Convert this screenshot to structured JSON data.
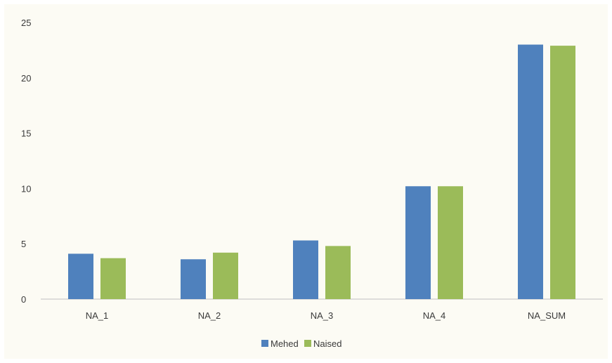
{
  "chart_data": {
    "type": "bar",
    "title": "",
    "xlabel": "",
    "ylabel": "",
    "categories": [
      "NA_1",
      "NA_2",
      "NA_3",
      "NA_4",
      "NA_SUM"
    ],
    "series": [
      {
        "name": "Mehed",
        "color": "#4f81bd",
        "values": [
          4.1,
          3.6,
          5.3,
          10.2,
          23.0
        ]
      },
      {
        "name": "Naised",
        "color": "#9bbb59",
        "values": [
          3.7,
          4.2,
          4.8,
          10.2,
          22.9
        ]
      }
    ],
    "ylim": [
      0,
      25
    ],
    "yticks": [
      "0",
      "5",
      "10",
      "15",
      "20",
      "25"
    ],
    "grid": false,
    "legend_position": "bottom"
  }
}
